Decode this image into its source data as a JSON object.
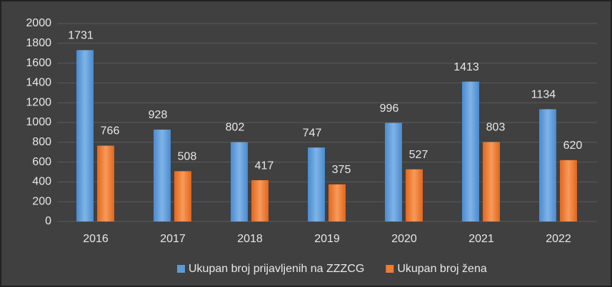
{
  "chart_data": {
    "type": "bar",
    "categories": [
      "2016",
      "2017",
      "2018",
      "2019",
      "2020",
      "2021",
      "2022"
    ],
    "series": [
      {
        "name": "Ukupan broj prijavljenih na ZZZCG",
        "color": "#5b9bd5",
        "values": [
          1731,
          928,
          802,
          747,
          996,
          1413,
          1134
        ]
      },
      {
        "name": "Ukupan broj žena",
        "color": "#ed7d31",
        "values": [
          766,
          508,
          417,
          375,
          527,
          803,
          620
        ]
      }
    ],
    "ylim": [
      0,
      2000
    ],
    "yticks": [
      0,
      200,
      400,
      600,
      800,
      1000,
      1200,
      1400,
      1600,
      1800,
      2000
    ],
    "grid": true,
    "legend": "bottom"
  }
}
